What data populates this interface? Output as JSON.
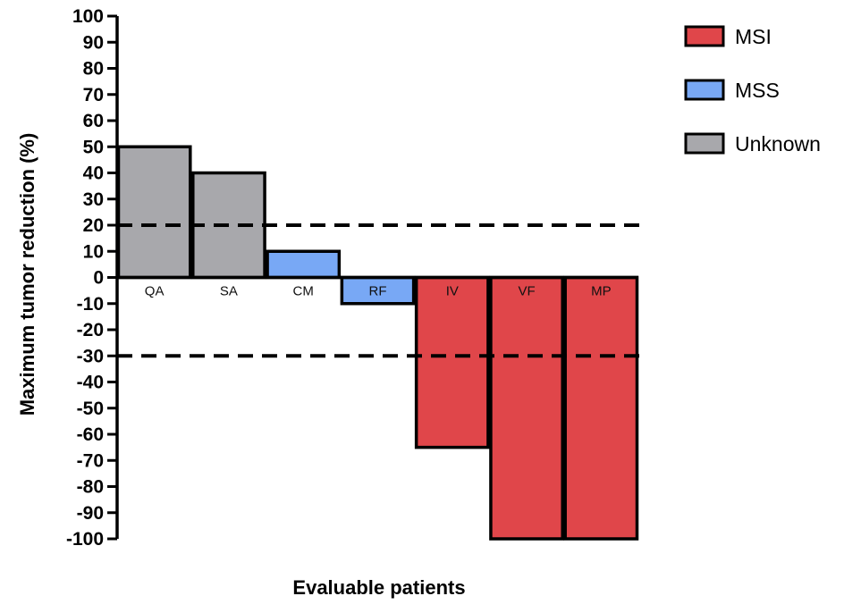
{
  "chart_data": {
    "type": "bar",
    "title": "",
    "xlabel": "Evaluable patients",
    "ylabel": "Maximum tumor reduction (%)",
    "ylim": [
      -100,
      100
    ],
    "yticks": [
      100,
      90,
      80,
      70,
      60,
      50,
      40,
      30,
      20,
      10,
      0,
      -10,
      -20,
      -30,
      -40,
      -50,
      -60,
      -70,
      -80,
      -90,
      -100
    ],
    "grid": false,
    "legend_position": "top-right",
    "categories": [
      "QA",
      "SA",
      "CM",
      "RF",
      "IV",
      "VF",
      "MP"
    ],
    "values": [
      50,
      40,
      10,
      -10,
      -65,
      -100,
      -100
    ],
    "groups": [
      "Unknown",
      "Unknown",
      "MSS",
      "MSS",
      "MSI",
      "MSI",
      "MSI"
    ],
    "legend": [
      {
        "name": "MSI",
        "color": "#e0464a"
      },
      {
        "name": "MSS",
        "color": "#78a8f5"
      },
      {
        "name": "Unknown",
        "color": "#a8a8ac"
      }
    ],
    "reference_lines": [
      20,
      -30
    ]
  }
}
